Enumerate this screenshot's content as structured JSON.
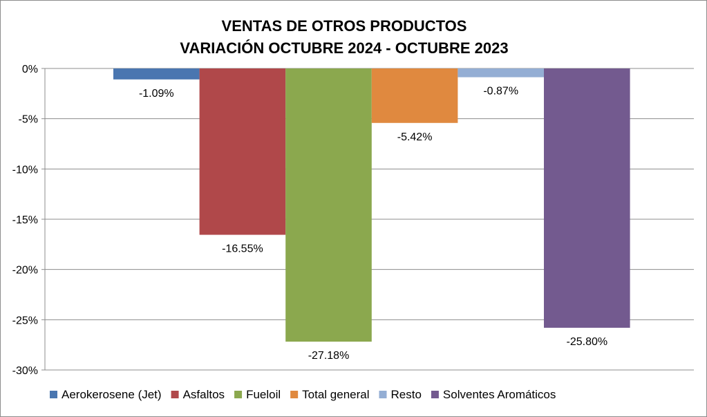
{
  "chart_data": {
    "type": "bar",
    "title": [
      "VENTAS DE OTROS PRODUCTOS",
      "VARIACIÓN OCTUBRE 2024 - OCTUBRE 2023"
    ],
    "xlabel": "",
    "ylabel": "",
    "ylim": [
      -30,
      0
    ],
    "yticks": [
      0,
      -5,
      -10,
      -15,
      -20,
      -25,
      -30
    ],
    "ytick_labels": [
      "0%",
      "-5%",
      "-10%",
      "-15%",
      "-20%",
      "-25%",
      "-30%"
    ],
    "grid": true,
    "legend_position": "bottom",
    "series": [
      {
        "name": "Aerokerosene (Jet)",
        "value": -1.09,
        "label": "-1.09%",
        "color": "#4A76B0"
      },
      {
        "name": "Asfaltos",
        "value": -16.55,
        "label": "-16.55%",
        "color": "#B0484A"
      },
      {
        "name": "Fueloil",
        "value": -27.18,
        "label": "-27.18%",
        "color": "#8BA84E"
      },
      {
        "name": "Total general",
        "value": -5.42,
        "label": "-5.42%",
        "color": "#E0893F"
      },
      {
        "name": "Resto",
        "value": -0.87,
        "label": "-0.87%",
        "color": "#94AED4"
      },
      {
        "name": "Solventes Aromáticos",
        "value": -25.8,
        "label": "-25.80%",
        "color": "#735A8F"
      }
    ]
  }
}
